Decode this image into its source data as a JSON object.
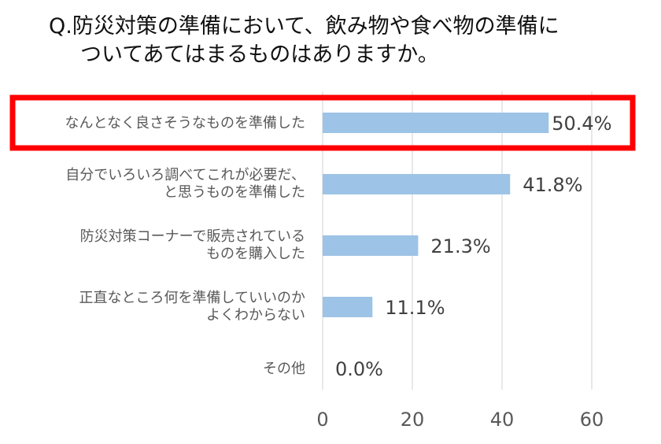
{
  "question": {
    "line1": "Q.防災対策の準備において、飲み物や食べ物の準備に",
    "line2": "ついてあてはまるものはありますか。"
  },
  "chart_data": {
    "type": "bar",
    "orientation": "horizontal",
    "categories": [
      [
        "なんとなく良さそうなものを準備した"
      ],
      [
        "自分でいろいろ調べてこれが必要だ、",
        "と思うものを準備した"
      ],
      [
        "防災対策コーナーで販売されている",
        "ものを購入した"
      ],
      [
        "正直なところ何を準備していいのか",
        "よくわからない"
      ],
      [
        "その他"
      ]
    ],
    "values": [
      50.4,
      41.8,
      21.3,
      11.1,
      0.0
    ],
    "value_labels": [
      "50.4%",
      "41.8%",
      "21.3%",
      "11.1%",
      "0.0%"
    ],
    "xlim": [
      0,
      60
    ],
    "xticks": [
      0,
      20,
      40,
      60
    ],
    "grid": true,
    "bar_color": "#9dc3e6",
    "highlight_index": 0,
    "highlight_color": "#ff0000"
  }
}
